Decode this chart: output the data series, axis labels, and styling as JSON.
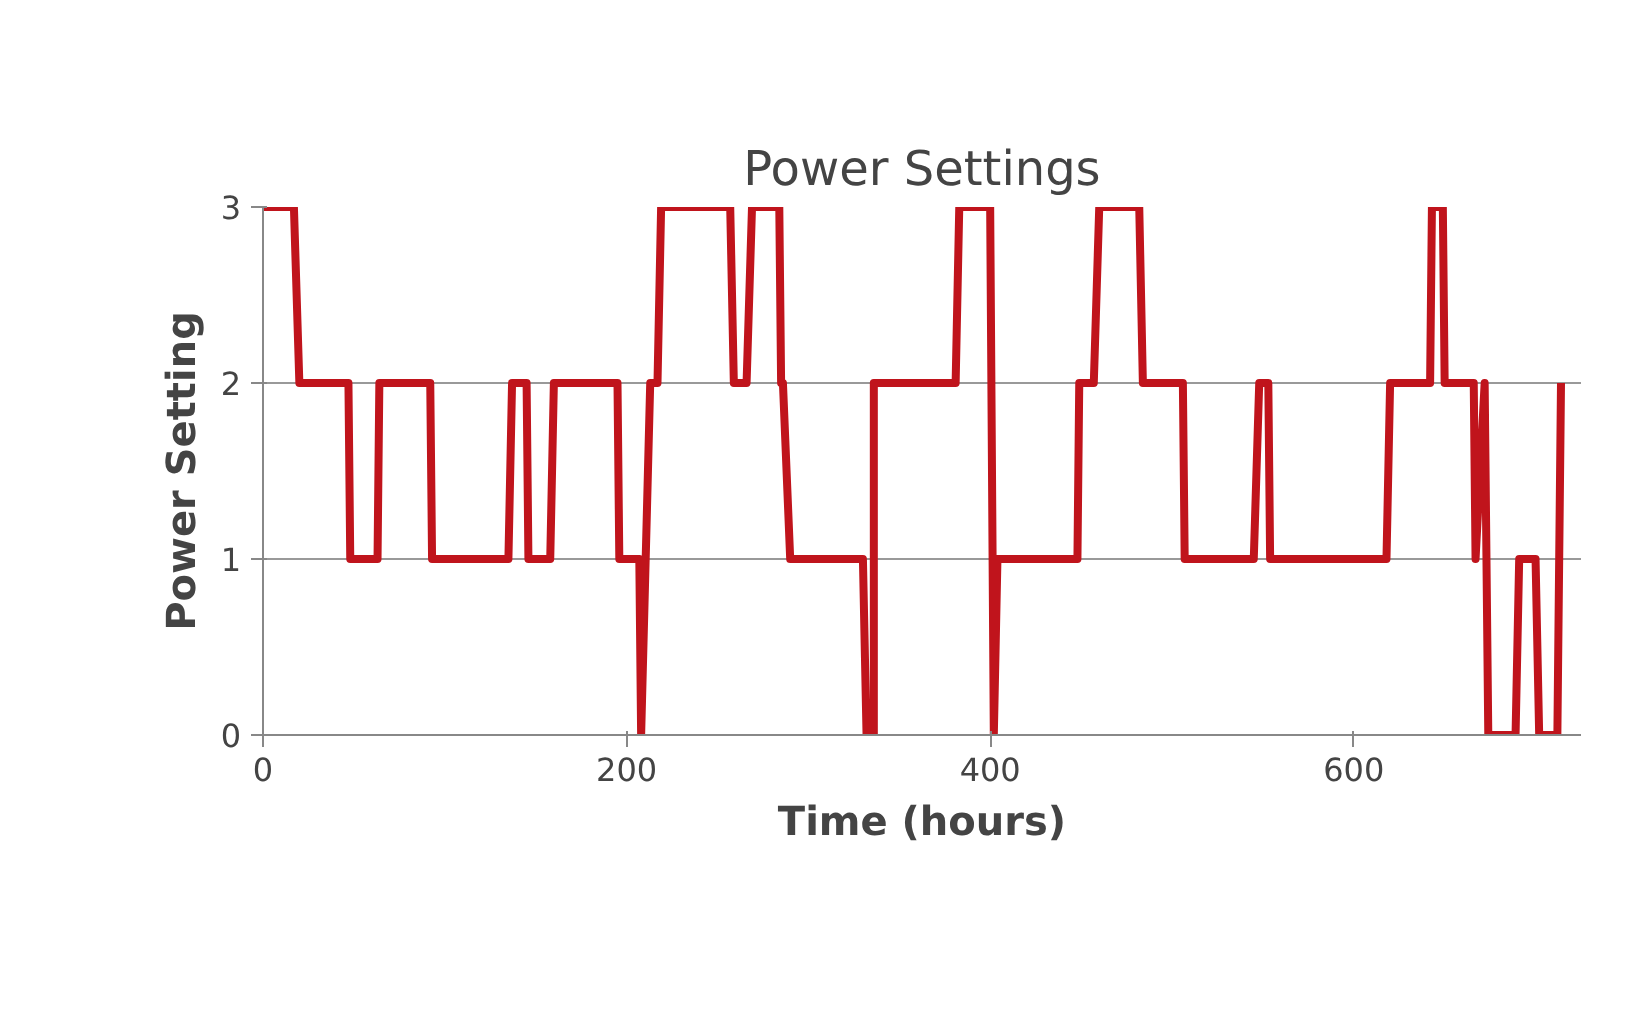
{
  "chart_data": {
    "type": "line",
    "title": "Power Settings",
    "xlabel": "Time (hours)",
    "ylabel": "Power Setting",
    "x": [
      0,
      17,
      20,
      47,
      48,
      63,
      64,
      92,
      93,
      135,
      137,
      145,
      146,
      158,
      160,
      195,
      196,
      207,
      208,
      213,
      217,
      219,
      257,
      259,
      266,
      269,
      284,
      285,
      286,
      290,
      330,
      332,
      336,
      336,
      381,
      383,
      400,
      402,
      404,
      448,
      449,
      457,
      460,
      482,
      484,
      504,
      506,
      507,
      545,
      548,
      553,
      554,
      618,
      620,
      642,
      643,
      649,
      650,
      666,
      667,
      672,
      674,
      689,
      691,
      700,
      702,
      712,
      714
    ],
    "series": [
      {
        "color": "#c0141c",
        "values": [
          3,
          3,
          2,
          2,
          1,
          1,
          2,
          2,
          1,
          1,
          2,
          2,
          1,
          1,
          2,
          2,
          1,
          1,
          0,
          2,
          2,
          3,
          3,
          2,
          2,
          3,
          3,
          2,
          2,
          1,
          1,
          0,
          0,
          2,
          2,
          3,
          3,
          0,
          1,
          1,
          2,
          2,
          3,
          3,
          2,
          2,
          2,
          1,
          1,
          2,
          2,
          1,
          1,
          2,
          2,
          3,
          3,
          2,
          2,
          1,
          2,
          0,
          0,
          1,
          1,
          0,
          0,
          2
        ]
      }
    ],
    "xlim": [
      0,
      725
    ],
    "ylim": [
      0,
      3
    ],
    "xticks": [
      0,
      200,
      400,
      600
    ],
    "yticks": [
      0,
      1,
      2,
      3
    ],
    "grid": "y",
    "line_style": "solid",
    "marker": "none"
  }
}
